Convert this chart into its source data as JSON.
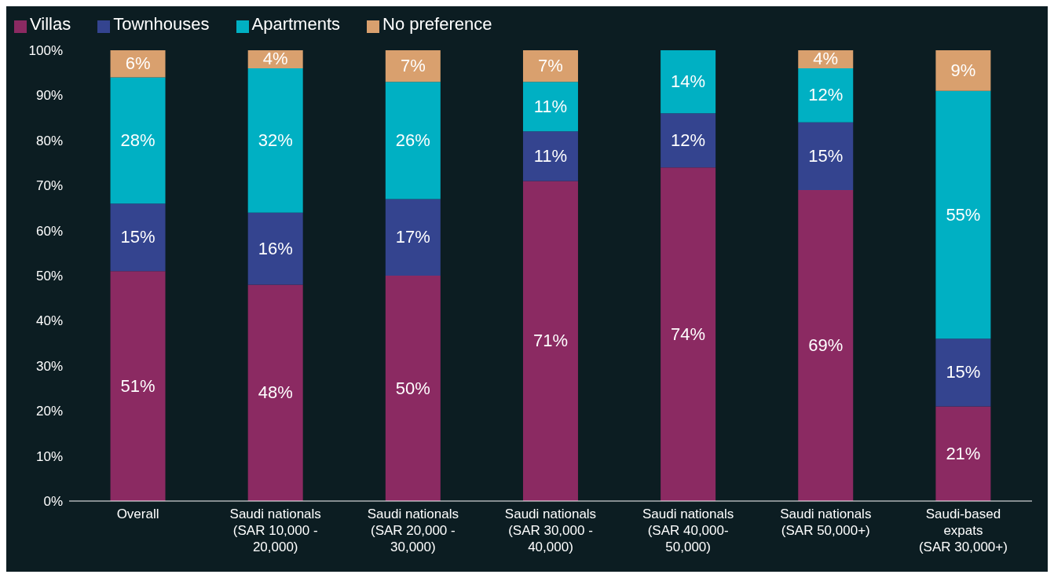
{
  "chart_data": {
    "type": "bar",
    "stacked": true,
    "legend": "top left",
    "grid": false,
    "categories": [
      "Overall",
      "Saudi nationals\n(SAR 10,000 -\n20,000)",
      "Saudi nationals\n(SAR 20,000 -\n30,000)",
      "Saudi nationals\n(SAR 30,000 -\n40,000)",
      "Saudi nationals\n(SAR 40,000-\n50,000)",
      "Saudi nationals\n(SAR  50,000+)",
      "Saudi-based\nexpats\n(SAR 30,000+)"
    ],
    "ylim": [
      0,
      100
    ],
    "yticks": [
      {
        "value": 0,
        "label": "0%"
      },
      {
        "value": 10,
        "label": "10%"
      },
      {
        "value": 20,
        "label": "20%"
      },
      {
        "value": 30,
        "label": "30%"
      },
      {
        "value": 40,
        "label": "40%"
      },
      {
        "value": 50,
        "label": "50%"
      },
      {
        "value": 60,
        "label": "60%"
      },
      {
        "value": 70,
        "label": "70%"
      },
      {
        "value": 80,
        "label": "80%"
      },
      {
        "value": 90,
        "label": "90%"
      },
      {
        "value": 100,
        "label": "100%"
      }
    ],
    "series": [
      {
        "name": "Villas",
        "color": "#8b2a62",
        "values": [
          51,
          48,
          50,
          71,
          74,
          69,
          21
        ],
        "value_labels": [
          "51%",
          "48%",
          "50%",
          "71%",
          "74%",
          "69%",
          "21%"
        ]
      },
      {
        "name": "Townhouses",
        "color": "#34448f",
        "values": [
          15,
          16,
          17,
          11,
          12,
          15,
          15
        ],
        "value_labels": [
          "15%",
          "16%",
          "17%",
          "11%",
          "12%",
          "15%",
          "15%"
        ]
      },
      {
        "name": "Apartments",
        "color": "#00b0c3",
        "values": [
          28,
          32,
          26,
          11,
          14,
          12,
          55
        ],
        "value_labels": [
          "28%",
          "32%",
          "26%",
          "11%",
          "14%",
          "12%",
          "55%"
        ]
      },
      {
        "name": "No preference",
        "color": "#d9a06e",
        "values": [
          6,
          4,
          7,
          7,
          null,
          4,
          9
        ],
        "value_labels": [
          "6%",
          "4%",
          "7%",
          "7%",
          null,
          "4%",
          "9%"
        ]
      }
    ]
  }
}
